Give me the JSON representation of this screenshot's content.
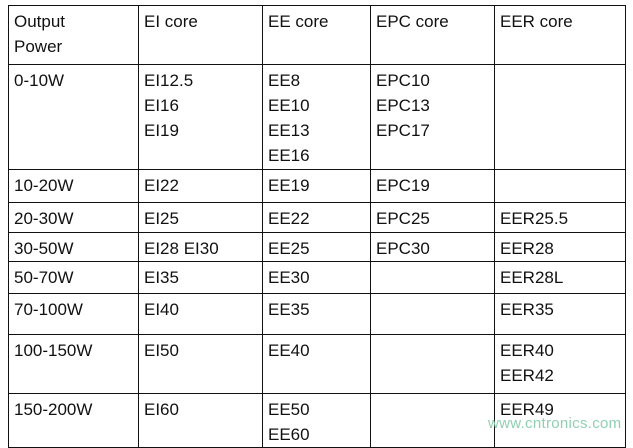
{
  "table": {
    "header": [
      [
        "Output",
        "Power"
      ],
      [
        "EI core"
      ],
      [
        "EE core"
      ],
      [
        "EPC core"
      ],
      [
        "EER core"
      ]
    ],
    "rows": [
      [
        [
          "0-10W"
        ],
        [
          "EI12.5",
          "EI16",
          "EI19"
        ],
        [
          "EE8",
          "EE10",
          "EE13",
          "EE16"
        ],
        [
          "EPC10",
          "EPC13",
          "EPC17"
        ],
        []
      ],
      [
        [
          "10-20W"
        ],
        [
          "EI22"
        ],
        [
          "EE19"
        ],
        [
          "EPC19"
        ],
        []
      ],
      [
        [
          "20-30W"
        ],
        [
          "EI25"
        ],
        [
          "EE22"
        ],
        [
          "EPC25"
        ],
        [
          "EER25.5"
        ]
      ],
      [
        [
          "30-50W"
        ],
        [
          "EI28 EI30"
        ],
        [
          "EE25"
        ],
        [
          "EPC30"
        ],
        [
          "EER28"
        ]
      ],
      [
        [
          "50-70W"
        ],
        [
          "EI35"
        ],
        [
          "EE30"
        ],
        [],
        [
          "EER28L"
        ]
      ],
      [
        [
          "70-100W"
        ],
        [
          "EI40"
        ],
        [
          "EE35"
        ],
        [],
        [
          "EER35"
        ]
      ],
      [
        [
          "100-150W"
        ],
        [
          "EI50"
        ],
        [
          "EE40"
        ],
        [],
        [
          "EER40",
          "EER42"
        ]
      ],
      [
        [
          "150-200W"
        ],
        [
          "EI60"
        ],
        [
          "EE50",
          "EE60"
        ],
        [],
        [
          "EER49"
        ]
      ]
    ]
  },
  "watermark": "www.cntronics.com"
}
